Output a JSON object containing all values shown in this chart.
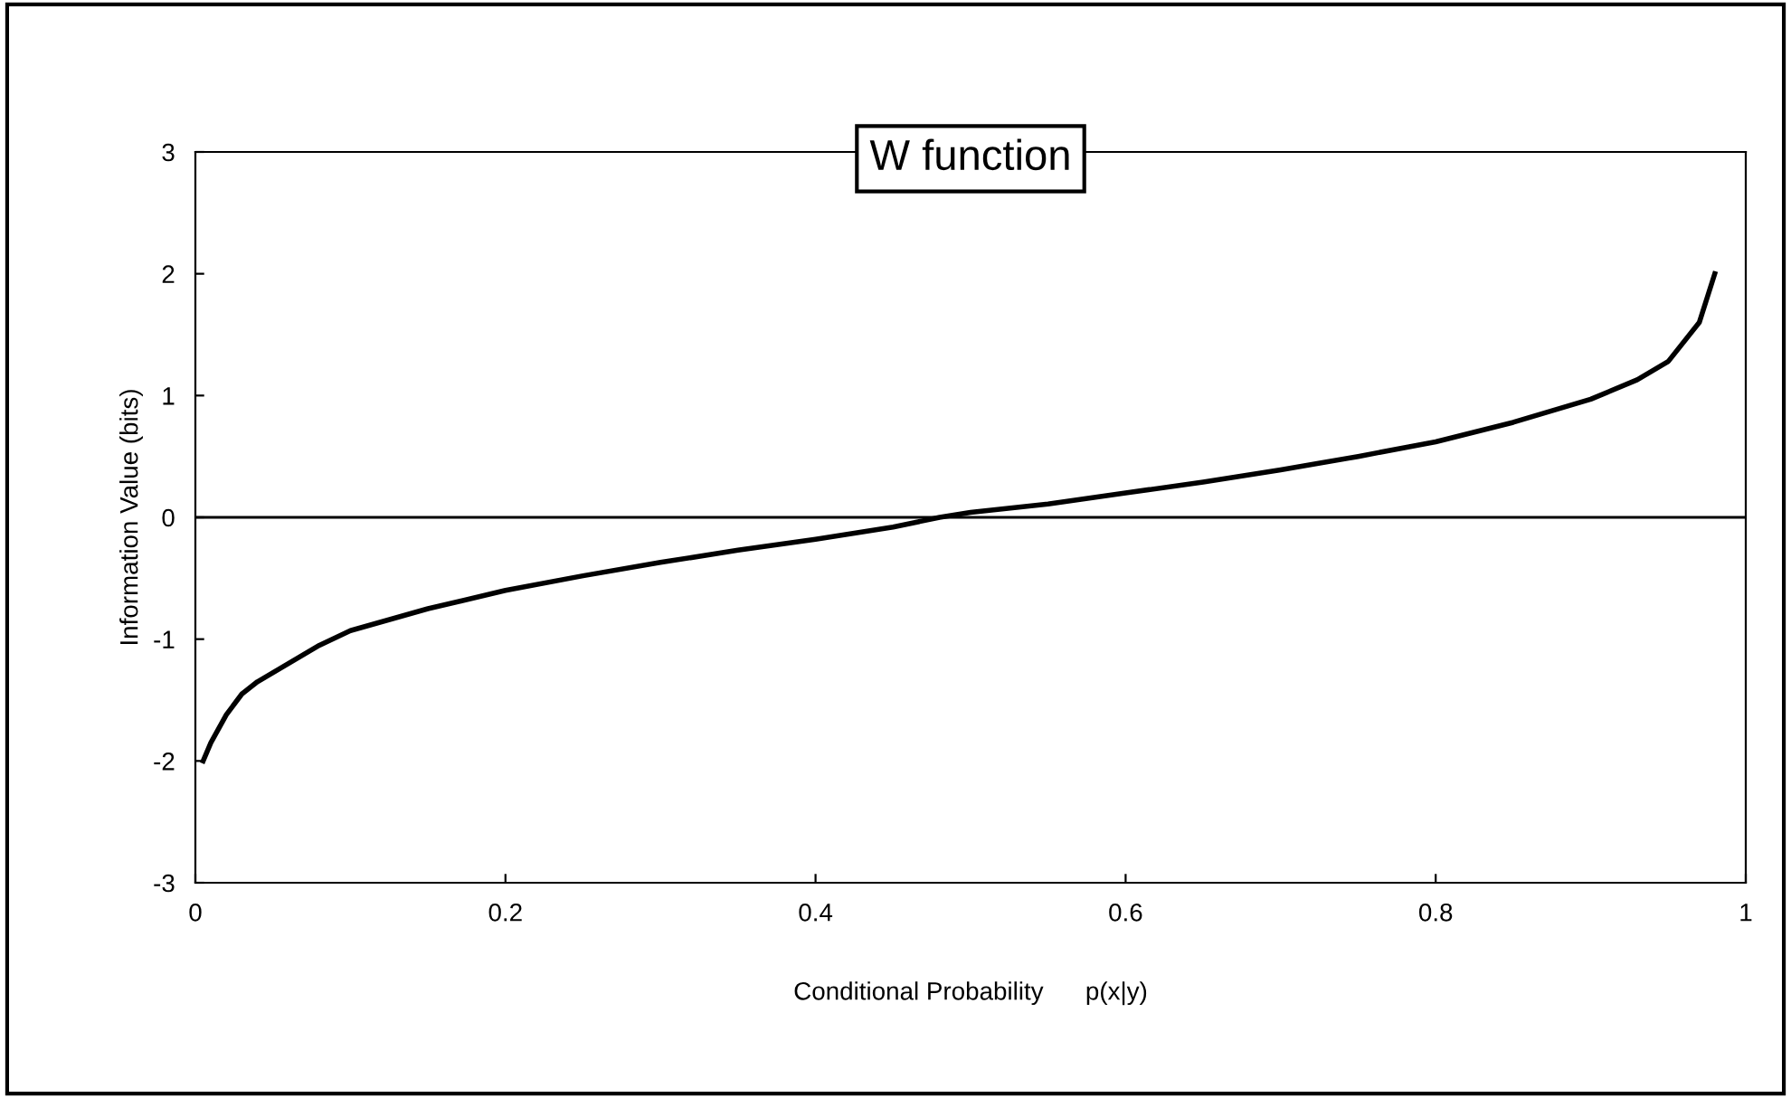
{
  "chart_data": {
    "type": "line",
    "title": "W function",
    "xlabel": "Conditional Probability      p(x|y)",
    "ylabel": "Information Value (bits)",
    "x": [
      0.005,
      0.01,
      0.02,
      0.03,
      0.04,
      0.06,
      0.08,
      0.1,
      0.15,
      0.2,
      0.25,
      0.3,
      0.35,
      0.4,
      0.45,
      0.48,
      0.5,
      0.55,
      0.6,
      0.65,
      0.7,
      0.75,
      0.8,
      0.85,
      0.9,
      0.93,
      0.95,
      0.97,
      0.98
    ],
    "series": [
      {
        "color": "#000000",
        "values": [
          -2.0,
          -1.85,
          -1.62,
          -1.45,
          -1.35,
          -1.2,
          -1.05,
          -0.93,
          -0.75,
          -0.6,
          -0.48,
          -0.37,
          -0.27,
          -0.18,
          -0.08,
          0.0,
          0.04,
          0.11,
          0.2,
          0.29,
          0.39,
          0.5,
          0.62,
          0.78,
          0.97,
          1.13,
          1.28,
          1.6,
          2.0
        ]
      }
    ],
    "xlim": [
      0,
      1
    ],
    "ylim": [
      -3,
      3
    ],
    "xticks": [
      0,
      0.2,
      0.4,
      0.6,
      0.8,
      1
    ],
    "yticks": [
      -3,
      -2,
      -1,
      0,
      1,
      2,
      3
    ],
    "ref_lines": [
      {
        "axis": "y",
        "value": 0,
        "color": "#000000"
      }
    ],
    "grid": false,
    "legend": false,
    "marker": "none",
    "line_style": "solid"
  }
}
